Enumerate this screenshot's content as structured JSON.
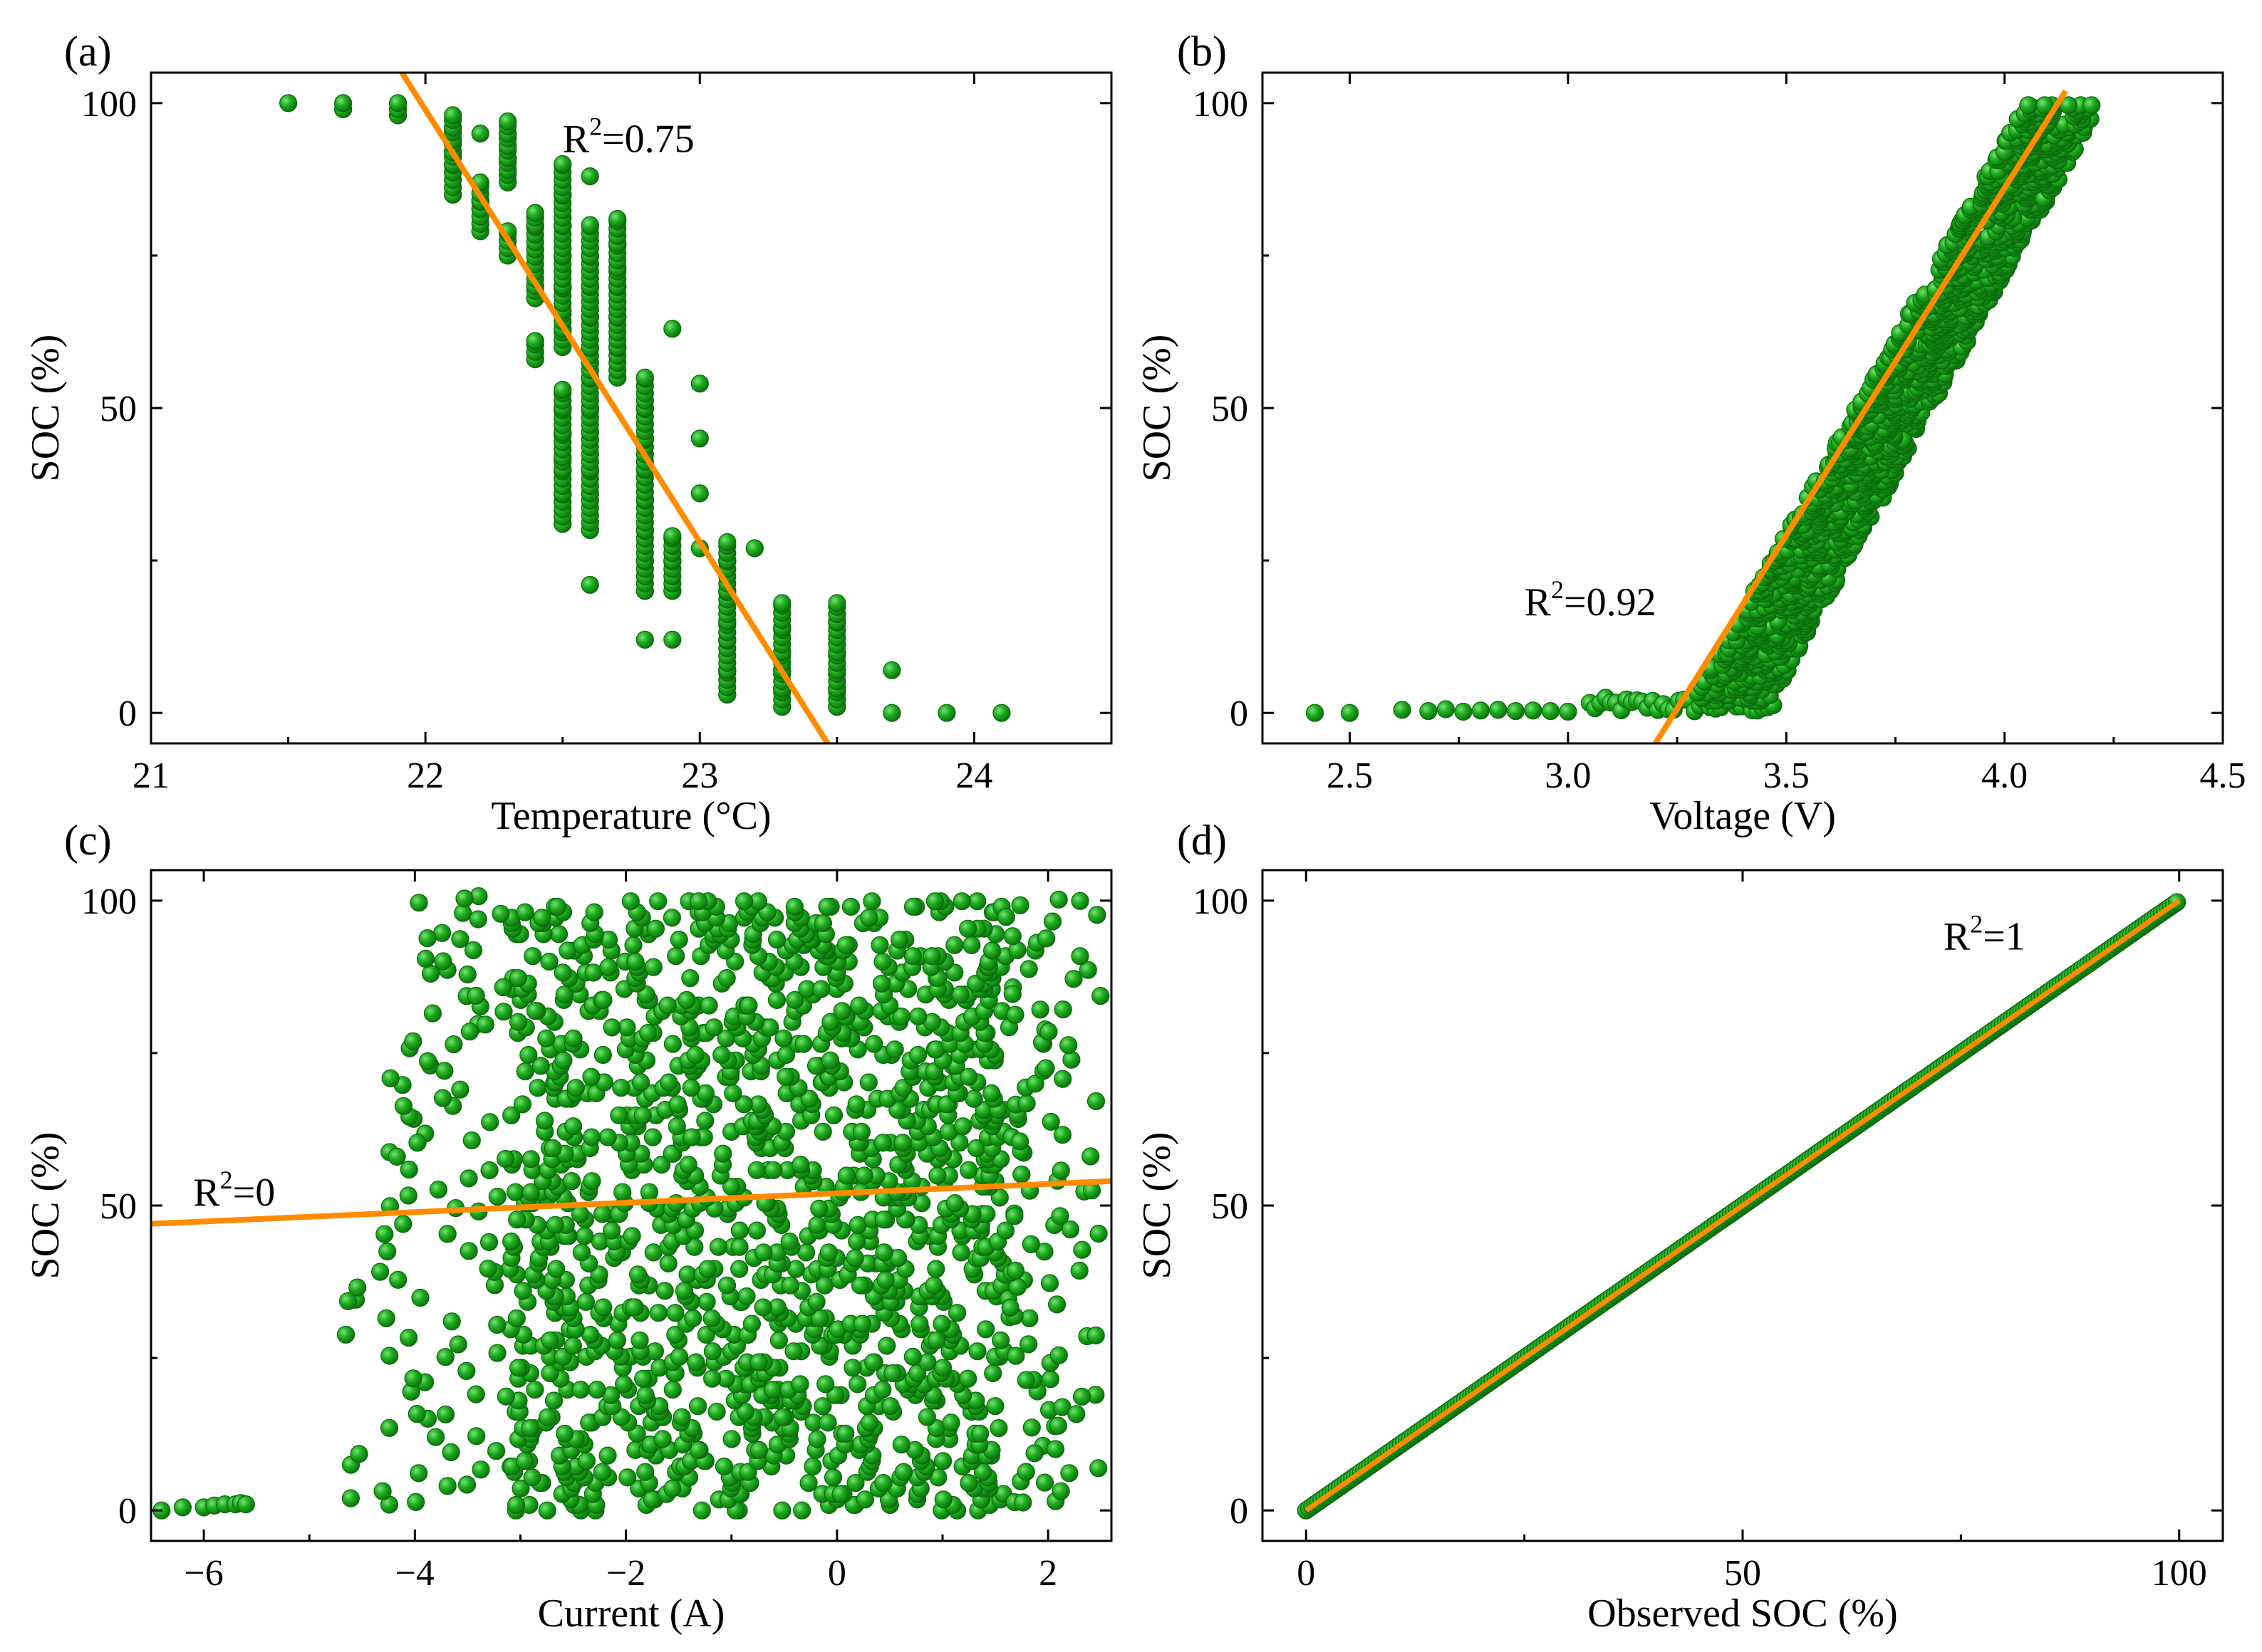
{
  "figure": {
    "background": "#ffffff"
  },
  "styles": {
    "marker_color": "#1faa1f",
    "marker_edge": "#0b6b0b",
    "fit_color": "#ff8c00",
    "axis_color": "#000000"
  },
  "chart_data": [
    {
      "panel": "(a)",
      "type": "scatter",
      "xlabel": "Temperature (°C)",
      "ylabel": "SOC (%)",
      "xlim": [
        21,
        24.5
      ],
      "ylim": [
        -5,
        105
      ],
      "xticks": [
        21,
        22,
        23,
        24
      ],
      "xtick_labels": [
        "21",
        "22",
        "23",
        "24"
      ],
      "yticks": [
        0,
        50,
        100
      ],
      "ytick_labels": [
        "0",
        "50",
        "100"
      ],
      "annotation": {
        "base": "R",
        "sup": "2",
        "rest": "=0.75",
        "x": 22.5,
        "y": 92
      },
      "fit_line": {
        "x": [
          21.9,
          23.48
        ],
        "y": [
          106,
          -6
        ]
      },
      "columns": [
        {
          "x": 21.5,
          "ys": [
            100
          ]
        },
        {
          "x": 21.7,
          "ys": [
            99,
            100
          ]
        },
        {
          "x": 21.9,
          "ys": [
            98,
            99,
            100
          ]
        },
        {
          "x": 22.1,
          "ys": [
            85,
            90,
            92,
            94,
            96,
            98
          ]
        },
        {
          "x": 22.2,
          "ys": [
            79,
            84,
            87,
            95
          ]
        },
        {
          "x": 22.3,
          "ys": [
            87,
            89,
            91,
            93,
            95,
            97
          ]
        },
        {
          "x": 22.3,
          "ys": [
            75,
            79
          ]
        },
        {
          "x": 22.4,
          "ys": [
            58,
            61,
            68,
            70,
            76,
            80,
            82
          ]
        },
        {
          "x": 22.5,
          "ys": [
            31,
            36,
            40,
            42,
            46,
            50,
            53,
            60,
            63,
            66,
            70,
            75,
            80,
            85,
            90
          ]
        },
        {
          "x": 22.6,
          "ys": [
            21,
            30,
            36,
            40,
            46,
            50,
            55,
            60,
            65,
            70,
            75,
            80,
            88
          ]
        },
        {
          "x": 22.7,
          "ys": [
            55,
            60,
            65,
            70,
            73,
            77,
            81
          ]
        },
        {
          "x": 22.8,
          "ys": [
            20,
            25,
            30,
            35,
            40,
            45,
            50,
            55
          ]
        },
        {
          "x": 22.8,
          "ys": [
            12
          ]
        },
        {
          "x": 22.9,
          "ys": [
            12,
            20,
            25,
            29,
            63
          ]
        },
        {
          "x": 23.0,
          "ys": [
            27,
            36,
            45,
            54
          ]
        },
        {
          "x": 23.1,
          "ys": [
            3,
            7,
            12,
            15,
            20,
            25,
            28
          ]
        },
        {
          "x": 23.2,
          "ys": [
            27
          ]
        },
        {
          "x": 23.3,
          "ys": [
            1,
            4,
            7,
            10,
            14,
            18
          ]
        },
        {
          "x": 23.5,
          "ys": [
            1,
            4,
            7,
            10,
            15,
            18
          ]
        },
        {
          "x": 23.7,
          "ys": [
            0,
            7
          ]
        },
        {
          "x": 23.9,
          "ys": [
            0
          ]
        },
        {
          "x": 24.1,
          "ys": [
            0
          ]
        }
      ]
    },
    {
      "panel": "(b)",
      "type": "scatter",
      "xlabel": "Voltage (V)",
      "ylabel": "SOC (%)",
      "xlim": [
        2.3,
        4.5
      ],
      "ylim": [
        -5,
        105
      ],
      "xticks": [
        2.5,
        3.0,
        3.5,
        4.0,
        4.5
      ],
      "xtick_labels": [
        "2.5",
        "3.0",
        "3.5",
        "4.0",
        "4.5"
      ],
      "yticks": [
        0,
        50,
        100
      ],
      "ytick_labels": [
        "0",
        "50",
        "100"
      ],
      "annotation": {
        "base": "R",
        "sup": "2",
        "rest": "=0.92",
        "x": 2.9,
        "y": 16
      },
      "fit_line": {
        "x": [
          3.2,
          4.14
        ],
        "y": [
          -5,
          102
        ]
      },
      "low_points": {
        "x": [
          2.42,
          2.5,
          2.62,
          2.68,
          2.72,
          2.76,
          2.8,
          2.84,
          2.88,
          2.92,
          2.96,
          3.0
        ],
        "y": [
          0,
          0,
          0.5,
          0.3,
          0.6,
          0.2,
          0.4,
          0.5,
          0.3,
          0.4,
          0.3,
          0.2
        ]
      },
      "band": {
        "v_start_lo": 3.27,
        "v_start_hi": 3.45,
        "v_end_lo": 4.05,
        "v_end_hi": 4.22,
        "soc_min": 0,
        "soc_max": 100,
        "v_base_lo": 3.05,
        "v_base_hi": 3.48
      }
    },
    {
      "panel": "(c)",
      "type": "scatter",
      "xlabel": "Current (A)",
      "ylabel": "SOC (%)",
      "xlim": [
        -6.5,
        2.6
      ],
      "ylim": [
        -5,
        105
      ],
      "xticks": [
        -6,
        -4,
        -2,
        0,
        2
      ],
      "xtick_labels": [
        "−6",
        "−4",
        "−2",
        "0",
        "2"
      ],
      "yticks": [
        0,
        50,
        100
      ],
      "ytick_labels": [
        "0",
        "50",
        "100"
      ],
      "annotation": {
        "base": "R",
        "sup": "2",
        "rest": "=0",
        "x": -6.1,
        "y": 50
      },
      "fit_line": {
        "x": [
          -6.5,
          2.6
        ],
        "y": [
          47,
          54
        ]
      },
      "low_points": {
        "x": [
          -6.4,
          -6.2,
          -6.0,
          -5.9,
          -5.8,
          -5.7,
          -5.65,
          -5.6
        ],
        "y": [
          0,
          0.5,
          0.5,
          0.8,
          1,
          1,
          1.2,
          1
        ]
      },
      "dense": {
        "x_lo": -3.1,
        "x_hi": 1.6,
        "sparse_x_lo": -5.2,
        "sparse_x_hi": 2.5,
        "soc_min": 0,
        "soc_max": 100
      }
    },
    {
      "panel": "(d)",
      "type": "scatter",
      "xlabel": "Observed SOC (%)",
      "ylabel": "SOC (%)",
      "xlim": [
        -5,
        105
      ],
      "ylim": [
        -5,
        105
      ],
      "xticks": [
        0,
        50,
        100
      ],
      "xtick_labels": [
        "0",
        "50",
        "100"
      ],
      "yticks": [
        0,
        50,
        100
      ],
      "ytick_labels": [
        "0",
        "50",
        "100"
      ],
      "annotation": {
        "base": "R",
        "sup": "2",
        "rest": "=1",
        "x": 73,
        "y": 92
      },
      "fit_line": {
        "x": [
          0,
          100
        ],
        "y": [
          0,
          100
        ]
      },
      "identity_points": {
        "from": 0,
        "to": 100
      }
    }
  ]
}
